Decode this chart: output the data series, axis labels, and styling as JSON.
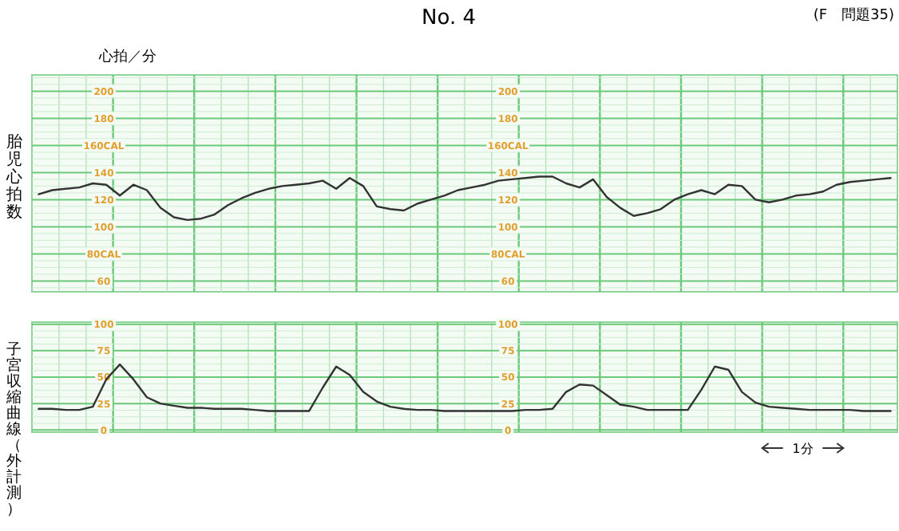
{
  "chart_data": [
    {
      "type": "line",
      "title": "No. 4",
      "subtitle": "(F　問題35)",
      "ylabel": "胎児心拍数",
      "annotations": [
        "心拍／分"
      ],
      "categories": [
        null,
        null,
        null,
        null,
        null,
        null,
        null,
        null,
        null,
        null,
        null,
        null,
        null,
        null,
        null,
        null,
        null,
        null,
        null,
        null,
        null,
        null,
        null,
        null,
        null,
        null,
        null,
        null,
        null,
        null,
        null,
        null,
        null,
        null,
        null,
        null,
        null,
        null,
        null,
        null,
        null,
        null,
        null,
        null,
        null,
        null,
        null,
        null,
        null,
        null,
        null,
        null,
        null,
        null,
        null,
        null,
        null,
        null,
        null,
        null,
        null,
        null,
        null,
        null
      ],
      "ylim": [
        52,
        212
      ],
      "yticks": [
        60,
        {
          "value": 80,
          "label": "80CAL"
        },
        100,
        120,
        140,
        {
          "value": 160,
          "label": "160CAL"
        },
        180,
        200
      ],
      "y2lim": [
        52,
        212
      ],
      "y2ticks": [
        60,
        {
          "value": 80,
          "label": "80CAL"
        },
        100,
        120,
        140,
        {
          "value": 160,
          "label": "160CAL"
        },
        180,
        200
      ],
      "tick_labels": "y",
      "grid": true,
      "marker": "none",
      "line_style": "solid",
      "series": [
        {
          "color": "#333333",
          "values": [
            124,
            127,
            128,
            129,
            132,
            131,
            123,
            131,
            127,
            114,
            107,
            105,
            106,
            109,
            116,
            121,
            125,
            128,
            130,
            131,
            132,
            134,
            128,
            136,
            130,
            115,
            113,
            112,
            117,
            120,
            123,
            127,
            129,
            131,
            134,
            135,
            136,
            137,
            137,
            132,
            129,
            135,
            122,
            114,
            108,
            110,
            113,
            120,
            124,
            127,
            124,
            131,
            130,
            120,
            118,
            120,
            123,
            124,
            126,
            131,
            133,
            134,
            135,
            136
          ]
        }
      ]
    },
    {
      "type": "line",
      "ylabel": "子宮収縮曲線（外計測）",
      "annotations": [
        "1分"
      ],
      "categories": [
        null,
        null,
        null,
        null,
        null,
        null,
        null,
        null,
        null,
        null,
        null,
        null,
        null,
        null,
        null,
        null,
        null,
        null,
        null,
        null,
        null,
        null,
        null,
        null,
        null,
        null,
        null,
        null,
        null,
        null,
        null,
        null,
        null,
        null,
        null,
        null,
        null,
        null,
        null,
        null,
        null,
        null,
        null,
        null,
        null,
        null,
        null,
        null,
        null,
        null,
        null,
        null,
        null,
        null,
        null,
        null,
        null,
        null,
        null,
        null,
        null,
        null,
        null,
        null
      ],
      "ylim": [
        -2,
        102
      ],
      "yticks": [
        0,
        25,
        50,
        75,
        100
      ],
      "y2lim": [
        -2,
        102
      ],
      "y2ticks": [
        0,
        25,
        50,
        75,
        100
      ],
      "tick_labels": "y",
      "grid": true,
      "marker": "none",
      "line_style": "solid",
      "series": [
        {
          "color": "#333333",
          "values": [
            20,
            20,
            19,
            19,
            22,
            48,
            62,
            48,
            31,
            25,
            23,
            21,
            21,
            20,
            20,
            20,
            19,
            18,
            18,
            18,
            18,
            40,
            60,
            52,
            36,
            27,
            22,
            20,
            19,
            19,
            18,
            18,
            18,
            18,
            18,
            18,
            19,
            19,
            20,
            36,
            43,
            42,
            33,
            24,
            22,
            19,
            19,
            19,
            19,
            38,
            60,
            57,
            36,
            26,
            22,
            21,
            20,
            19,
            19,
            19,
            19,
            18,
            18,
            18
          ]
        }
      ]
    }
  ]
}
